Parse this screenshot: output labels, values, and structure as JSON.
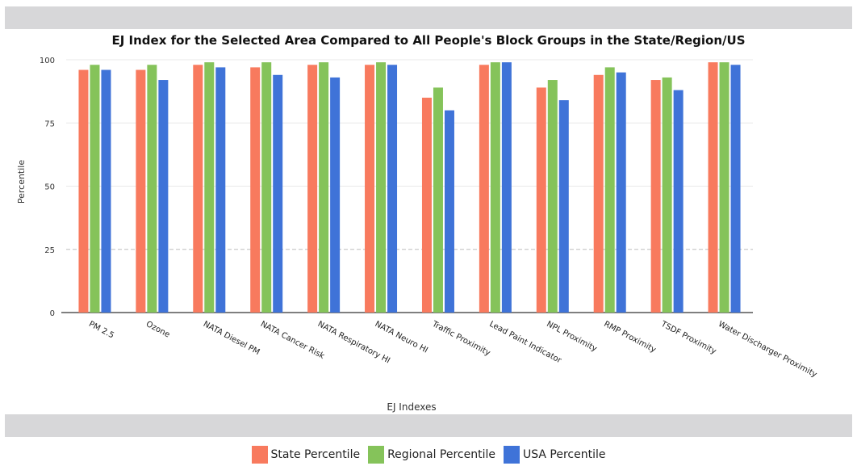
{
  "colors": {
    "state": "#f87a5e",
    "regional": "#85c35a",
    "usa": "#3f73d8",
    "gridline": "#e8e8e8",
    "axis": "#333333",
    "band": "#d7d7d9"
  },
  "chart_data": {
    "type": "bar",
    "title": "EJ Index for the Selected Area Compared to All People's Block Groups in the State/Region/US",
    "xlabel": "EJ Indexes",
    "ylabel": "Percentile",
    "ylim": [
      0,
      100
    ],
    "yticks": [
      0,
      25,
      50,
      75,
      100
    ],
    "grid": true,
    "legend_position": "bottom",
    "categories": [
      "PM 2.5",
      "Ozone",
      "NATA Diesel PM",
      "NATA Cancer Risk",
      "NATA Respiratory HI",
      "NATA Neuro HI",
      "Traffic Proximity",
      "Lead Paint Indicator",
      "NPL Proximity",
      "RMP Proximity",
      "TSDF Proximity",
      "Water Discharger Proximity"
    ],
    "series": [
      {
        "name": "State Percentile",
        "values": [
          96,
          96,
          98,
          97,
          98,
          98,
          85,
          98,
          89,
          94,
          92,
          99
        ]
      },
      {
        "name": "Regional Percentile",
        "values": [
          98,
          98,
          99,
          99,
          99,
          99,
          89,
          99,
          92,
          97,
          93,
          99
        ]
      },
      {
        "name": "USA Percentile",
        "values": [
          96,
          92,
          97,
          94,
          93,
          98,
          80,
          99,
          84,
          95,
          88,
          98
        ]
      }
    ]
  }
}
